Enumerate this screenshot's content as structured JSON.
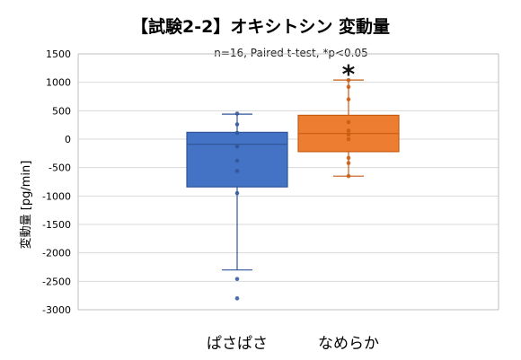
{
  "chart_data": {
    "type": "box",
    "title": "【試験2-2】オキシトシン 変動量",
    "note": "n=16, Paired t-test, *p<0.05",
    "significance_marker": "*",
    "ylabel": "変動量 [pg/min]",
    "xlabel": "",
    "ylim": [
      -3000,
      1500
    ],
    "yticks": [
      1500,
      1000,
      500,
      0,
      -500,
      -1000,
      -1500,
      -2000,
      -2500,
      -3000
    ],
    "grid": true,
    "categories": [
      "ぱさぱさ",
      "なめらか"
    ],
    "series": [
      {
        "category": "ぱさぱさ",
        "color": "#4472C4",
        "edge_color": "#2F5597",
        "whisker_low": -2300,
        "q1": -840,
        "median": -90,
        "q3": 120,
        "whisker_high": 440,
        "points": [
          -2800,
          -2460,
          -950,
          -560,
          -380,
          -130,
          110,
          260,
          450
        ]
      },
      {
        "category": "なめらか",
        "color": "#ED7D31",
        "edge_color": "#C55A11",
        "whisker_low": -650,
        "q1": -220,
        "median": 100,
        "q3": 420,
        "whisker_high": 1040,
        "points": [
          -650,
          -420,
          -330,
          0,
          80,
          150,
          300,
          700,
          920,
          1040
        ]
      }
    ]
  }
}
